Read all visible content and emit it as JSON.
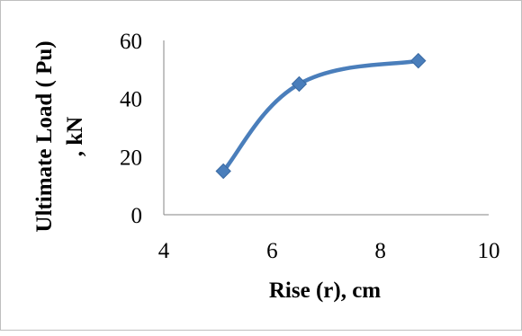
{
  "chart_data": {
    "type": "line",
    "title": "",
    "xlabel": "Rise (r), cm",
    "ylabel_lines": [
      "Ultimate Load ( Pu)",
      ", kN"
    ],
    "x_ticks": [
      4,
      6,
      8,
      10
    ],
    "y_ticks": [
      0,
      20,
      40,
      60
    ],
    "xlim": [
      4,
      10
    ],
    "ylim": [
      0,
      60
    ],
    "grid": false,
    "legend": "none",
    "series": [
      {
        "x": [
          5.1,
          6.5,
          8.7
        ],
        "y": [
          15,
          45,
          53
        ],
        "color": "#4a7ebb",
        "marker": "diamond",
        "smooth": true
      }
    ]
  }
}
